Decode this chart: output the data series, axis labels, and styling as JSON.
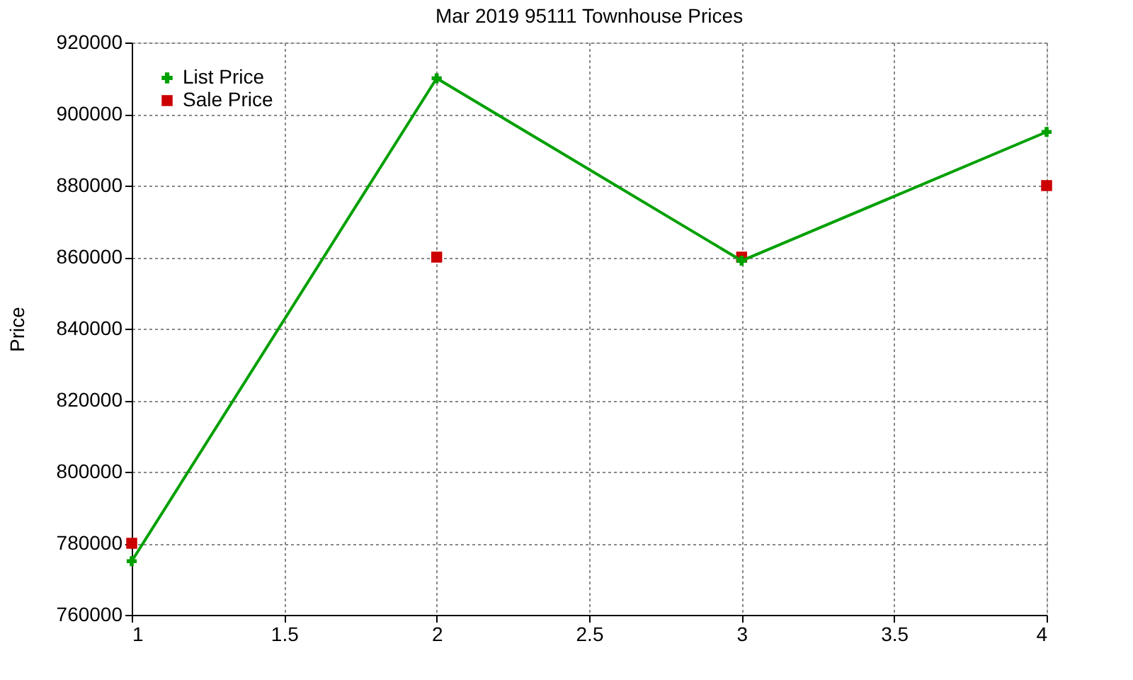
{
  "chart_data": {
    "type": "line",
    "title": "Mar 2019 95111 Townhouse Prices",
    "ylabel": "Price",
    "x": [
      1,
      2,
      3,
      4
    ],
    "series": [
      {
        "name": "List Price",
        "color": "#00a000",
        "values": [
          775000,
          910000,
          859000,
          895000
        ],
        "marker": "cross",
        "line_style": "solid"
      },
      {
        "name": "Sale Price",
        "color": "#cc0000",
        "values": [
          780000,
          860000,
          860000,
          880000
        ],
        "type": "scatter",
        "marker": "square"
      }
    ],
    "xlim": [
      1,
      4
    ],
    "xticks": [
      1,
      1.5,
      2,
      2.5,
      3,
      3.5,
      4
    ],
    "ylim": [
      760000,
      920000
    ],
    "yticks": [
      760000,
      780000,
      800000,
      820000,
      840000,
      860000,
      880000,
      900000,
      920000
    ],
    "grid": true,
    "legend": "top left"
  }
}
